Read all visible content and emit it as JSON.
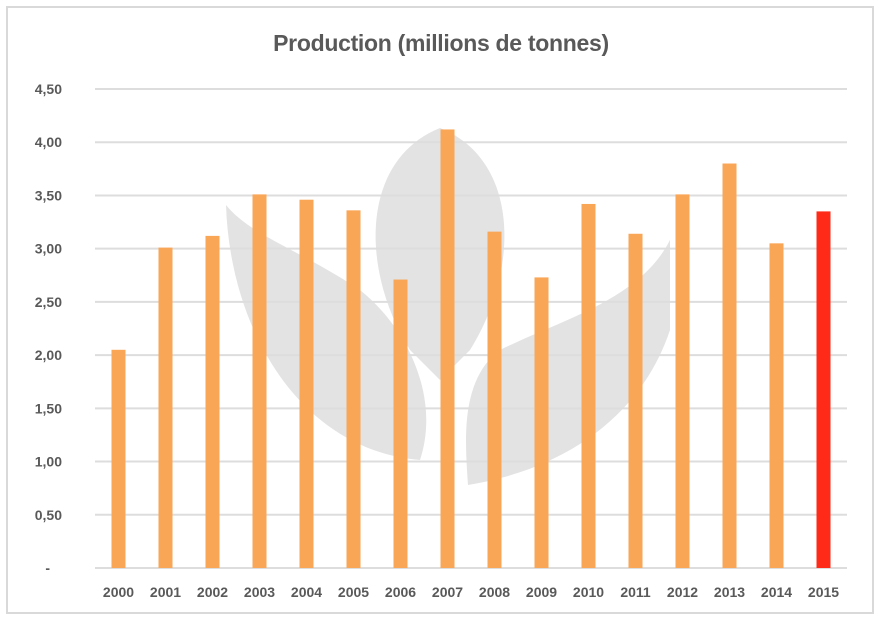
{
  "chart_data": {
    "type": "bar",
    "title": "Production (millions de tonnes)",
    "xlabel": "",
    "ylabel": "",
    "ylim": [
      0,
      4.5
    ],
    "grid": true,
    "legend": "none",
    "y_ticks": [
      0,
      0.5,
      1,
      1.5,
      2,
      2.5,
      3,
      3.5,
      4,
      4.5
    ],
    "y_tick_labels": [
      "-",
      "0,50",
      "1,00",
      "1,50",
      "2,00",
      "2,50",
      "3,00",
      "3,50",
      "4,00",
      "4,50"
    ],
    "categories": [
      "2000",
      "2001",
      "2002",
      "2003",
      "2004",
      "2005",
      "2006",
      "2007",
      "2008",
      "2009",
      "2010",
      "2011",
      "2012",
      "2013",
      "2014",
      "2015"
    ],
    "values": [
      2.05,
      3.01,
      3.12,
      3.51,
      3.46,
      3.36,
      2.71,
      4.12,
      3.16,
      2.73,
      3.42,
      3.14,
      3.51,
      3.8,
      3.05,
      3.35
    ],
    "highlight_index": 15,
    "colors": {
      "bar": "#F9A657",
      "highlight": "#FF2A17",
      "grid": "#DDDDDD",
      "text": "#595959",
      "watermark": "#E3E3E3"
    },
    "watermark": "leaf-logo"
  }
}
